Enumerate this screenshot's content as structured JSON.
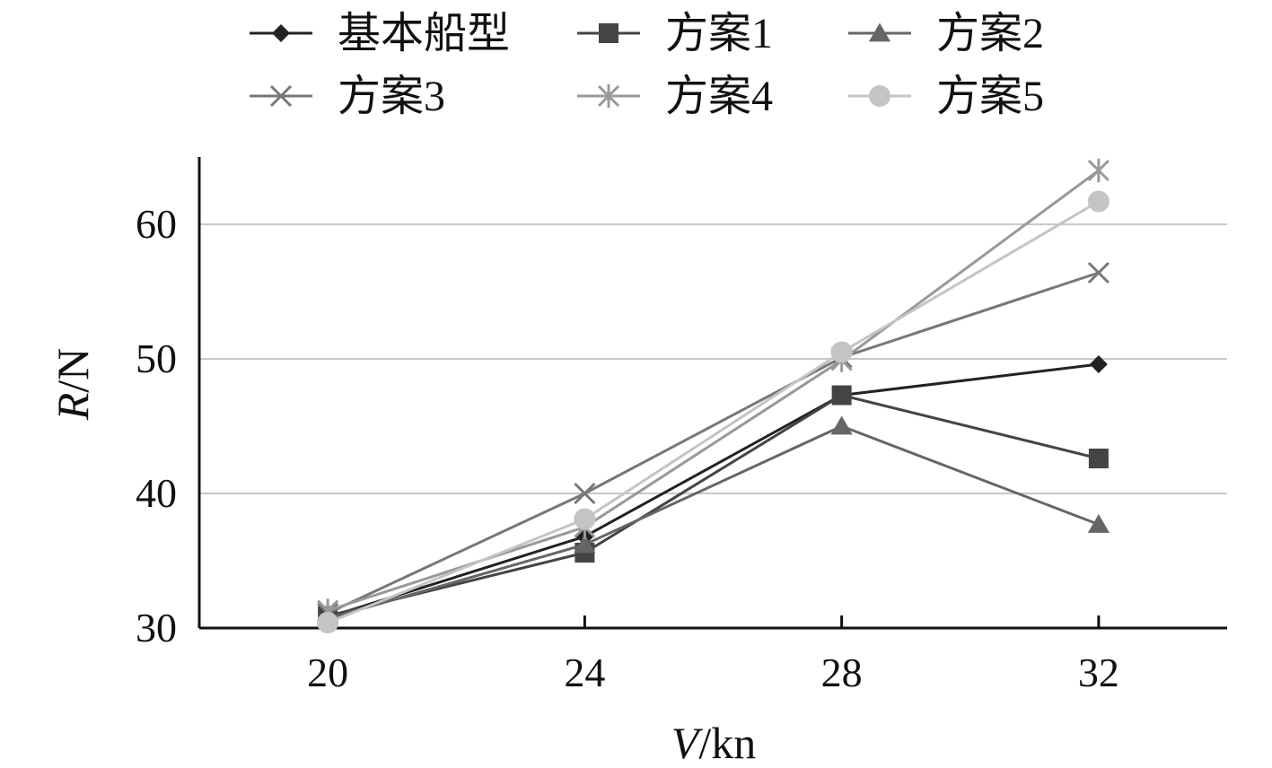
{
  "chart_data": {
    "type": "line",
    "xlabel_var": "V",
    "xlabel_unit": "/kn",
    "ylabel_var": "R",
    "ylabel_unit": "/N",
    "x": [
      20,
      24,
      28,
      32
    ],
    "xlim": [
      18,
      34
    ],
    "ylim": [
      30,
      65
    ],
    "y_ticks": [
      30,
      40,
      50,
      60
    ],
    "y_gridlines": [
      40,
      50,
      60
    ],
    "grid": "horizontal",
    "legend_position": "top",
    "series": [
      {
        "name": "基本船型",
        "marker": "diamond",
        "color": "#222222",
        "values": [
          30.8,
          36.8,
          47.3,
          49.6
        ]
      },
      {
        "name": "方案1",
        "marker": "square",
        "color": "#444444",
        "values": [
          30.9,
          35.6,
          47.3,
          42.6
        ]
      },
      {
        "name": "方案2",
        "marker": "triangle",
        "color": "#666666",
        "values": [
          30.7,
          36.2,
          45.0,
          37.7
        ]
      },
      {
        "name": "方案3",
        "marker": "x",
        "color": "#777777",
        "values": [
          31.1,
          40.0,
          50.1,
          56.4
        ]
      },
      {
        "name": "方案4",
        "marker": "asterisk",
        "color": "#999999",
        "values": [
          31.3,
          37.5,
          49.9,
          64.0
        ]
      },
      {
        "name": "方案5",
        "marker": "circle",
        "color": "#c4c4c4",
        "values": [
          30.4,
          38.1,
          50.5,
          61.7
        ]
      }
    ]
  }
}
